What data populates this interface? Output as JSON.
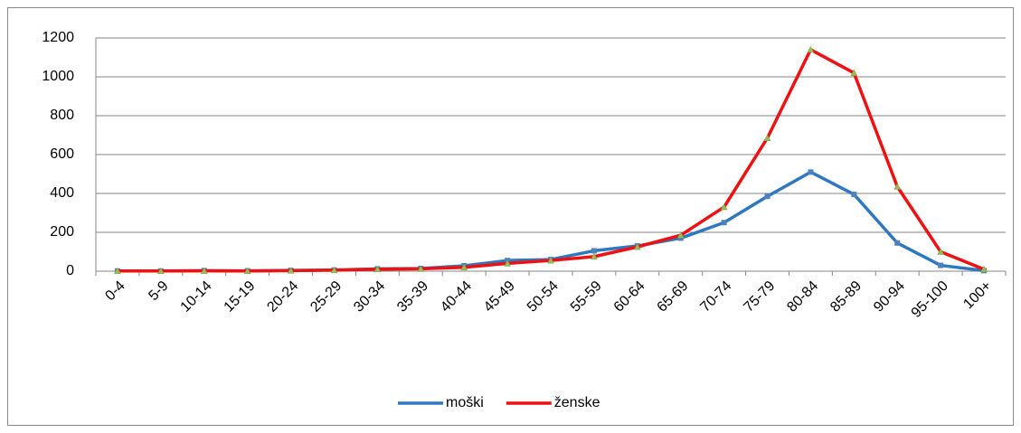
{
  "chart_data": {
    "type": "line",
    "categories": [
      "0-4",
      "5-9",
      "10-14",
      "15-19",
      "20-24",
      "25-29",
      "30-34",
      "35-39",
      "40-44",
      "45-49",
      "50-54",
      "55-59",
      "60-64",
      "65-69",
      "70-74",
      "75-79",
      "80-84",
      "85-89",
      "90-94",
      "95-100",
      "100+"
    ],
    "series": [
      {
        "name": "moški",
        "color": "#2e78c2",
        "marker": "square",
        "marker_color": "#4f81bd",
        "values": [
          1,
          1,
          3,
          2,
          4,
          6,
          12,
          14,
          28,
          55,
          60,
          105,
          130,
          170,
          250,
          385,
          510,
          395,
          145,
          30,
          3
        ]
      },
      {
        "name": "ženske",
        "color": "#ee1111",
        "marker": "triangle",
        "marker_color": "#9bbb59",
        "values": [
          1,
          1,
          2,
          1,
          3,
          5,
          10,
          12,
          20,
          40,
          55,
          75,
          125,
          185,
          330,
          685,
          1140,
          1020,
          435,
          100,
          10
        ]
      }
    ],
    "ylim": [
      0,
      1200
    ],
    "yticks": [
      0,
      200,
      400,
      600,
      800,
      1000,
      1200
    ],
    "grid": true,
    "legend": "bottom"
  }
}
